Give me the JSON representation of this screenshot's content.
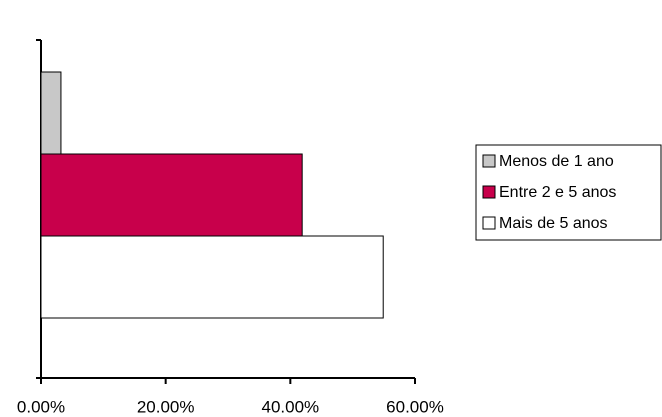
{
  "chart_data": {
    "type": "bar",
    "orientation": "horizontal",
    "categories": [
      null
    ],
    "series": [
      {
        "name": "Menos de 1 ano",
        "color": "#c8c8c8",
        "values": [
          3.2
        ]
      },
      {
        "name": "Entre 2 e 5 anos",
        "color": "#c8004b",
        "values": [
          41.9
        ]
      },
      {
        "name": "Mais de 5 anos",
        "color": "#ffffff",
        "values": [
          54.9
        ]
      }
    ],
    "xlim": [
      0,
      60
    ],
    "xticks": [
      {
        "value": 0,
        "label": "0.00%"
      },
      {
        "value": 20,
        "label": "20.00%"
      },
      {
        "value": 40,
        "label": "40.00%"
      },
      {
        "value": 60,
        "label": "60.00%"
      }
    ],
    "legend": "right"
  }
}
